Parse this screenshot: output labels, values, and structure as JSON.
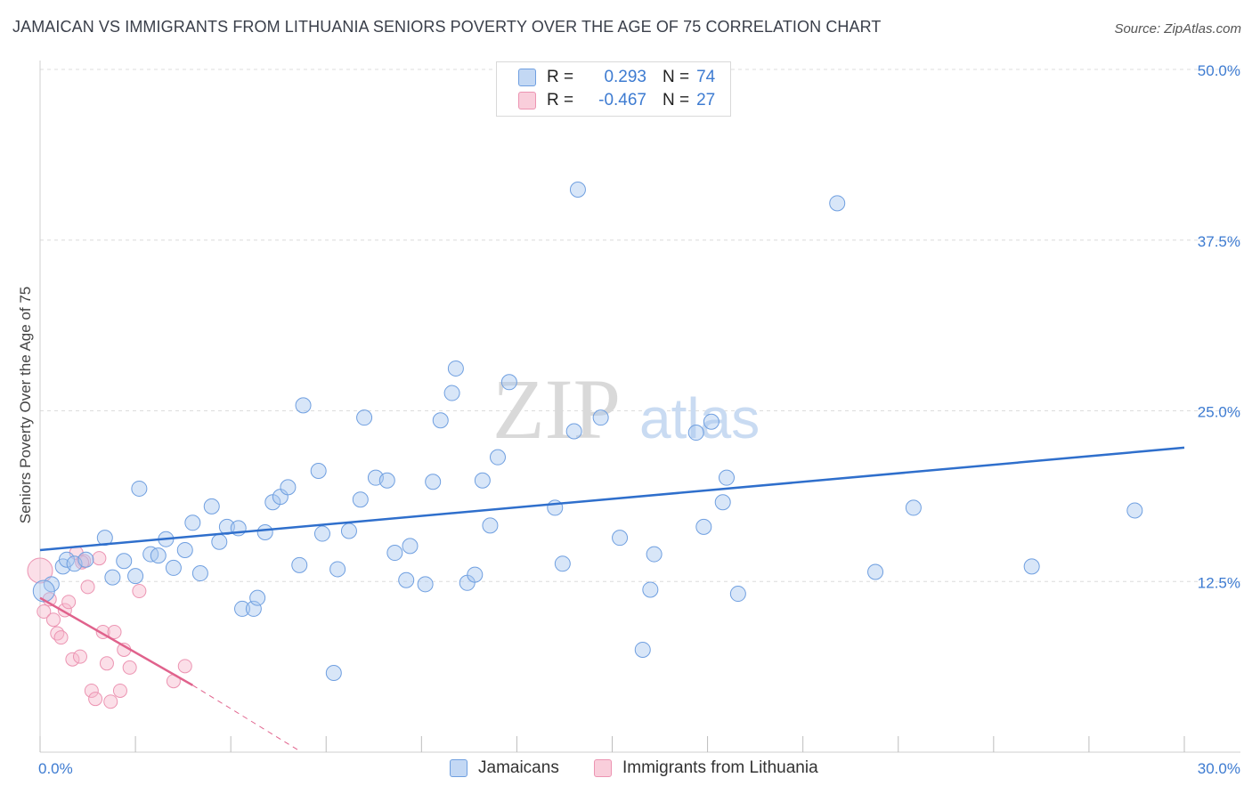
{
  "title": "JAMAICAN VS IMMIGRANTS FROM LITHUANIA SENIORS POVERTY OVER THE AGE OF 75 CORRELATION CHART",
  "source": "Source: ZipAtlas.com",
  "watermark": {
    "zip": "ZIP",
    "atlas": "atlas"
  },
  "legend": {
    "rows": [
      {
        "r_label": "R =",
        "r_value": "0.293",
        "n_label": "N =",
        "n_value": "74"
      },
      {
        "r_label": "R =",
        "r_value": "-0.467",
        "n_label": "N =",
        "n_value": "27"
      }
    ]
  },
  "bottom_legend": {
    "series1": "Jamaicans",
    "series2": "Immigrants from Lithuania"
  },
  "colors": {
    "blue_fill": "#a9c7ef",
    "blue_stroke": "#6f9fe0",
    "blue_line": "#2f6fcc",
    "pink_fill": "#f6b9cc",
    "pink_stroke": "#ec94b2",
    "pink_line": "#e0628c",
    "tick_label": "#3d7bd1",
    "grid": "#dcdcdc"
  },
  "chart_data": {
    "type": "scatter",
    "title": "JAMAICAN VS IMMIGRANTS FROM LITHUANIA SENIORS POVERTY OVER THE AGE OF 75 CORRELATION CHART",
    "xlabel": "",
    "ylabel": "Seniors Poverty Over the Age of 75",
    "xlim": [
      0,
      30
    ],
    "ylim": [
      0,
      50
    ],
    "x_tick_labels": [
      "0.0%",
      "30.0%"
    ],
    "y_ticks": [
      12.5,
      25.0,
      37.5,
      50.0
    ],
    "y_tick_labels": [
      "12.5%",
      "25.0%",
      "37.5%",
      "50.0%"
    ],
    "legend_position": "top-center",
    "series": [
      {
        "name": "Jamaicans",
        "r": 0.293,
        "n": 74,
        "trend": {
          "x": [
            0,
            30
          ],
          "y": [
            14.8,
            22.3
          ]
        },
        "points": [
          [
            0.3,
            12.3
          ],
          [
            0.6,
            13.6
          ],
          [
            0.7,
            14.1
          ],
          [
            0.9,
            13.8
          ],
          [
            1.2,
            14.1
          ],
          [
            1.7,
            15.7
          ],
          [
            1.9,
            12.8
          ],
          [
            2.2,
            14.0
          ],
          [
            2.5,
            12.9
          ],
          [
            2.6,
            19.3
          ],
          [
            2.9,
            14.5
          ],
          [
            3.1,
            14.4
          ],
          [
            3.3,
            15.6
          ],
          [
            3.5,
            13.5
          ],
          [
            3.8,
            14.8
          ],
          [
            4.0,
            16.8
          ],
          [
            4.2,
            13.1
          ],
          [
            4.5,
            18.0
          ],
          [
            4.7,
            15.4
          ],
          [
            4.9,
            16.5
          ],
          [
            5.2,
            16.4
          ],
          [
            5.3,
            10.5
          ],
          [
            5.6,
            10.5
          ],
          [
            5.7,
            11.3
          ],
          [
            5.9,
            16.1
          ],
          [
            6.1,
            18.3
          ],
          [
            6.3,
            18.7
          ],
          [
            6.5,
            19.4
          ],
          [
            6.8,
            13.7
          ],
          [
            6.9,
            25.4
          ],
          [
            7.3,
            20.6
          ],
          [
            7.4,
            16.0
          ],
          [
            7.7,
            5.8
          ],
          [
            7.8,
            13.4
          ],
          [
            8.1,
            16.2
          ],
          [
            8.4,
            18.5
          ],
          [
            8.5,
            24.5
          ],
          [
            8.8,
            20.1
          ],
          [
            9.1,
            19.9
          ],
          [
            9.3,
            14.6
          ],
          [
            9.6,
            12.6
          ],
          [
            9.7,
            15.1
          ],
          [
            10.1,
            12.3
          ],
          [
            10.3,
            19.8
          ],
          [
            10.5,
            24.3
          ],
          [
            10.8,
            26.3
          ],
          [
            10.9,
            28.1
          ],
          [
            11.2,
            12.4
          ],
          [
            11.4,
            13.0
          ],
          [
            11.6,
            19.9
          ],
          [
            11.8,
            16.6
          ],
          [
            12.0,
            21.6
          ],
          [
            12.3,
            27.1
          ],
          [
            13.5,
            17.9
          ],
          [
            13.7,
            13.8
          ],
          [
            14.0,
            23.5
          ],
          [
            14.7,
            24.5
          ],
          [
            14.1,
            41.2
          ],
          [
            15.2,
            15.7
          ],
          [
            15.8,
            7.5
          ],
          [
            16.0,
            11.9
          ],
          [
            16.1,
            14.5
          ],
          [
            17.2,
            23.4
          ],
          [
            17.4,
            16.5
          ],
          [
            17.6,
            24.2
          ],
          [
            17.9,
            18.3
          ],
          [
            18.0,
            20.1
          ],
          [
            18.3,
            11.6
          ],
          [
            20.9,
            40.2
          ],
          [
            21.9,
            13.2
          ],
          [
            22.9,
            17.9
          ],
          [
            26.0,
            13.6
          ],
          [
            28.7,
            17.7
          ],
          [
            0.1,
            11.8
          ]
        ]
      },
      {
        "name": "Immigrants from Lithuania",
        "r": -0.467,
        "n": 27,
        "trend": {
          "x": [
            0,
            4.0
          ],
          "y": [
            11.3,
            4.9
          ]
        },
        "trend_dashed": {
          "x": [
            4.0,
            6.8
          ],
          "y": [
            4.9,
            0.1
          ]
        },
        "points": [
          [
            0.0,
            13.3
          ],
          [
            0.1,
            10.3
          ],
          [
            0.25,
            11.2
          ],
          [
            0.35,
            9.7
          ],
          [
            0.45,
            8.7
          ],
          [
            0.55,
            8.4
          ],
          [
            0.65,
            10.4
          ],
          [
            0.75,
            11.0
          ],
          [
            0.85,
            6.8
          ],
          [
            0.95,
            14.6
          ],
          [
            1.05,
            7.0
          ],
          [
            1.15,
            14.0
          ],
          [
            1.25,
            12.1
          ],
          [
            1.35,
            4.5
          ],
          [
            1.45,
            3.9
          ],
          [
            1.55,
            14.2
          ],
          [
            1.65,
            8.8
          ],
          [
            1.75,
            6.5
          ],
          [
            1.85,
            3.7
          ],
          [
            1.95,
            8.8
          ],
          [
            2.1,
            4.5
          ],
          [
            2.2,
            7.5
          ],
          [
            2.35,
            6.2
          ],
          [
            2.6,
            11.8
          ],
          [
            3.5,
            5.2
          ],
          [
            3.8,
            6.3
          ],
          [
            1.1,
            13.9
          ]
        ]
      }
    ]
  }
}
